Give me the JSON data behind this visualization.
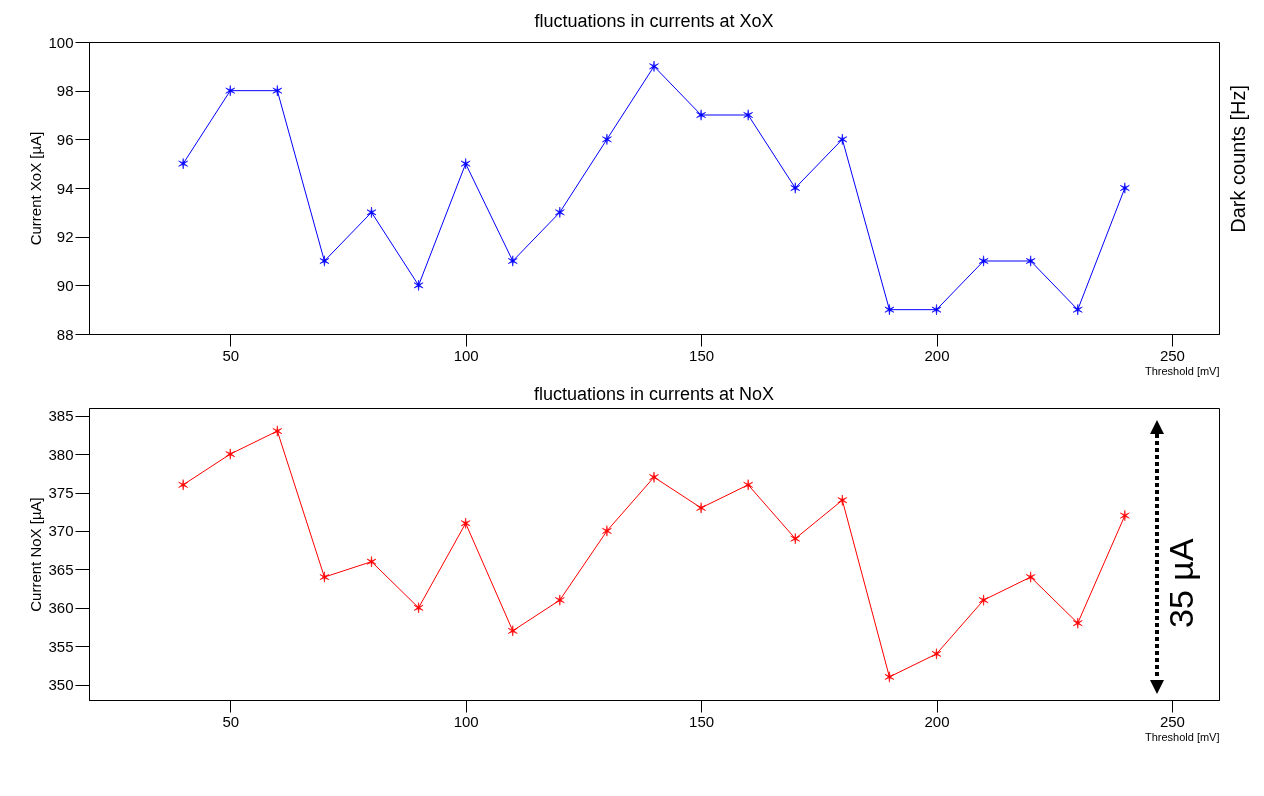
{
  "chart_data": [
    {
      "type": "line",
      "title": "fluctuations in currents at XoX",
      "xlabel": "Threshold [mV]",
      "ylabel": "Current XoX [µA]",
      "y2label": "Dark counts [Hz]",
      "x": [
        40,
        50,
        60,
        70,
        80,
        90,
        100,
        110,
        120,
        130,
        140,
        150,
        160,
        170,
        180,
        190,
        200,
        210,
        220,
        230,
        240
      ],
      "series": [
        {
          "color": "#0000ff",
          "values": [
            95,
            98,
            98,
            91,
            93,
            90,
            95,
            91,
            93,
            96,
            99,
            97,
            97,
            94,
            96,
            89,
            89,
            91,
            91,
            89,
            94
          ]
        }
      ],
      "xlim": [
        20,
        260
      ],
      "xticks": [
        50,
        100,
        150,
        200,
        250
      ],
      "ylim": [
        88,
        100
      ],
      "yticks": [
        88,
        90,
        92,
        94,
        96,
        98,
        100
      ],
      "marker": "cross",
      "line_style": "solid",
      "grid": false
    },
    {
      "type": "line",
      "title": "fluctuations in currents at NoX",
      "xlabel": "Threshold [mV]",
      "ylabel": "Current NoX [µA]",
      "x": [
        40,
        50,
        60,
        70,
        80,
        90,
        100,
        110,
        120,
        130,
        140,
        150,
        160,
        170,
        180,
        190,
        200,
        210,
        220,
        230,
        240
      ],
      "series": [
        {
          "color": "#ff0000",
          "values": [
            376,
            380,
            383,
            364,
            366,
            360,
            371,
            357,
            361,
            370,
            377,
            373,
            376,
            369,
            374,
            351,
            354,
            361,
            364,
            358,
            372
          ]
        }
      ],
      "xlim": [
        20,
        260
      ],
      "xticks": [
        50,
        100,
        150,
        200,
        250
      ],
      "ylim": [
        348,
        386
      ],
      "yticks": [
        350,
        355,
        360,
        365,
        370,
        375,
        380,
        385
      ],
      "marker": "cross",
      "line_style": "solid",
      "grid": false,
      "annotations": [
        "35 µA"
      ]
    }
  ]
}
